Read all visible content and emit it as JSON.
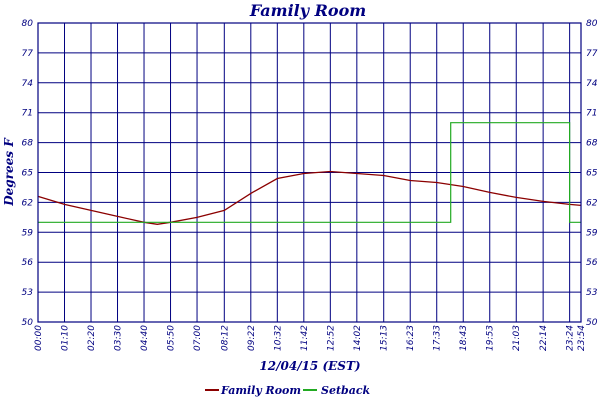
{
  "colors": {
    "axis": "#000080",
    "grid": "#000080",
    "family_room_series": "#8b0000",
    "setback_series": "#22aa22",
    "background": "#ffffff"
  },
  "chart_data": {
    "type": "line",
    "title": "Family Room",
    "xlabel": "12/04/15 (EST)",
    "ylabel": "Degrees F",
    "ylim": [
      50,
      80
    ],
    "y_ticks": [
      "50",
      "53",
      "56",
      "59",
      "62",
      "65",
      "68",
      "71",
      "74",
      "77",
      "80"
    ],
    "x_ticks": [
      "00:00",
      "01:10",
      "02:20",
      "03:30",
      "04:40",
      "05:50",
      "07:00",
      "08:12",
      "09:22",
      "10:32",
      "11:42",
      "12:52",
      "14:02",
      "15:13",
      "16:23",
      "17:33",
      "18:43",
      "19:53",
      "21:03",
      "22:14",
      "23:24",
      "23:54"
    ],
    "grid": true,
    "legend_position": "bottom-center",
    "series": [
      {
        "name": "Family Room",
        "color": "#8b0000",
        "x": [
          "00:00",
          "01:10",
          "02:20",
          "03:30",
          "04:40",
          "05:15",
          "05:50",
          "07:00",
          "08:12",
          "09:22",
          "10:32",
          "11:42",
          "12:52",
          "14:02",
          "15:13",
          "16:23",
          "17:33",
          "18:43",
          "19:53",
          "21:03",
          "22:14",
          "23:24",
          "23:54"
        ],
        "values": [
          62.6,
          61.8,
          61.2,
          60.6,
          60.0,
          59.8,
          60.0,
          60.5,
          61.2,
          62.9,
          64.4,
          64.9,
          65.1,
          64.9,
          64.7,
          64.2,
          64.0,
          63.6,
          63.0,
          62.5,
          62.1,
          61.8,
          61.7
        ]
      },
      {
        "name": "Setback",
        "color": "#22aa22",
        "x": [
          "00:00",
          "18:10",
          "18:10",
          "23:24",
          "23:24",
          "23:54"
        ],
        "values": [
          60,
          60,
          70,
          70,
          60,
          60
        ]
      }
    ]
  }
}
